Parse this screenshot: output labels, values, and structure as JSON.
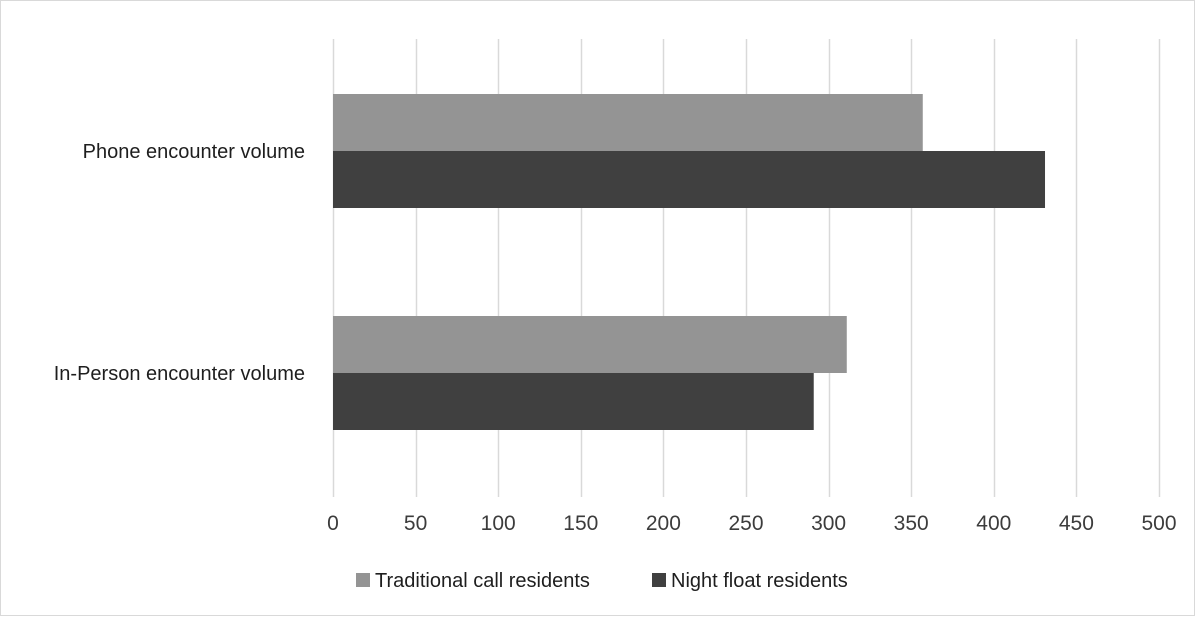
{
  "chart_data": {
    "type": "bar",
    "orientation": "horizontal",
    "categories": [
      "Phone encounter volume",
      "In-Person encounter volume"
    ],
    "series": [
      {
        "name": "Traditional call residents",
        "values": [
          357,
          311
        ],
        "color": "#949494"
      },
      {
        "name": "Night float residents",
        "values": [
          431,
          291
        ],
        "color": "#404040"
      }
    ],
    "xlim": [
      0,
      500
    ],
    "xticks": [
      0,
      50,
      100,
      150,
      200,
      250,
      300,
      350,
      400,
      450,
      500
    ],
    "grid": "vertical",
    "legend_position": "bottom",
    "gridline_color": "#d9d9d9"
  }
}
